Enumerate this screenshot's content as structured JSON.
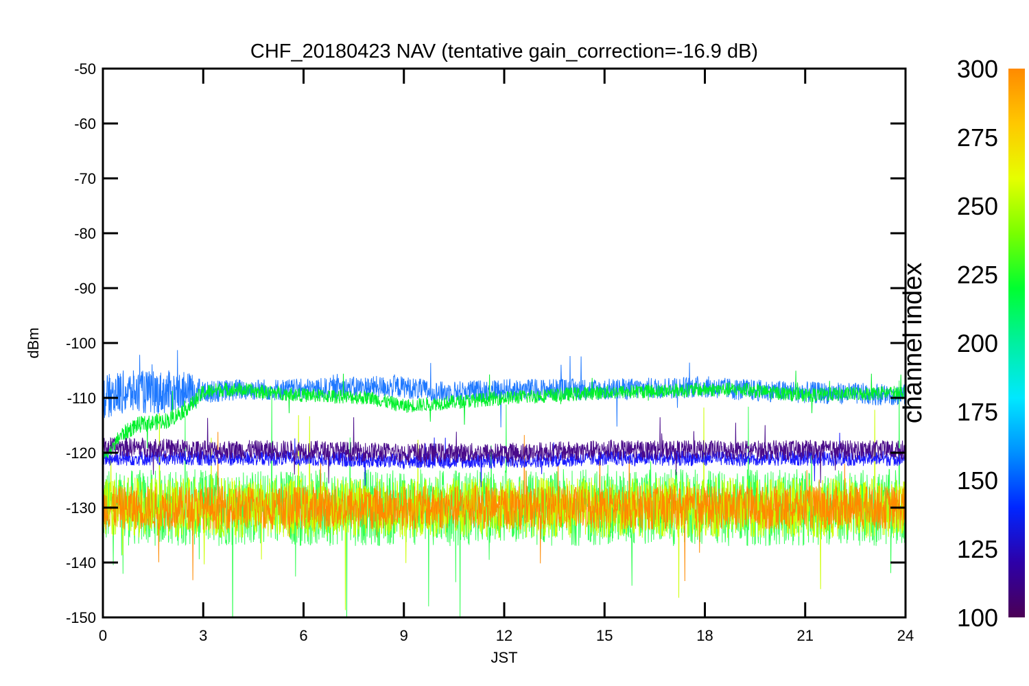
{
  "chart_data": {
    "type": "line",
    "title": "CHF_20180423 NAV (tentative gain_correction=-16.9 dB)",
    "xlabel": "JST",
    "ylabel": "dBm",
    "xlim": [
      0,
      24
    ],
    "ylim": [
      -150,
      -50
    ],
    "x_ticks": [
      "0",
      "3",
      "6",
      "9",
      "12",
      "15",
      "18",
      "21",
      "24"
    ],
    "y_ticks": [
      "-50",
      "-60",
      "-70",
      "-80",
      "-90",
      "-100",
      "-110",
      "-120",
      "-130",
      "-140",
      "-150"
    ],
    "grid": false,
    "colorbar": {
      "label": "channel index",
      "range": [
        100,
        300
      ],
      "ticks": [
        "100",
        "125",
        "150",
        "175",
        "200",
        "225",
        "250",
        "275",
        "300"
      ],
      "colormap": [
        "#4b0055",
        "#2d00a8",
        "#0026ff",
        "#0090ff",
        "#00e8ff",
        "#00f0a0",
        "#00ff30",
        "#7aff00",
        "#e6ff00",
        "#ffc800",
        "#ff8a00"
      ]
    },
    "series": [
      {
        "channel_index": 150,
        "color": "#1e78ff",
        "description_x": [
          0,
          0.5,
          1,
          2,
          2.7,
          3,
          4,
          6,
          8,
          9,
          10,
          12,
          15,
          18,
          19,
          21,
          24
        ],
        "center": [
          -110,
          -109,
          -109,
          -109,
          -109,
          -109,
          -108.5,
          -108.5,
          -108,
          -108,
          -109,
          -108.5,
          -108.5,
          -108,
          -108.5,
          -109,
          -109.5
        ],
        "spread": [
          4,
          4,
          4,
          4,
          3.5,
          2,
          2,
          2,
          2,
          2,
          2,
          2,
          2,
          2,
          2,
          2,
          2
        ]
      },
      {
        "channel_index": 230,
        "color": "#00f02a",
        "description_x": [
          0,
          0.3,
          0.5,
          1,
          2,
          2.7,
          3,
          3.5,
          4,
          6,
          8,
          9,
          10,
          12,
          15,
          18,
          19,
          21,
          24
        ],
        "center": [
          -121,
          -119,
          -117,
          -115,
          -114,
          -111,
          -109,
          -108.5,
          -108.5,
          -109.5,
          -110,
          -111.5,
          -111,
          -110,
          -109,
          -108.5,
          -108.5,
          -109.5,
          -109
        ],
        "spread": [
          1,
          1,
          1.5,
          1.5,
          1.5,
          1.5,
          1.5,
          1.3,
          1.3,
          1.3,
          1.3,
          1.3,
          1.3,
          1.3,
          1.3,
          1.3,
          1.3,
          1.3,
          1.3
        ]
      },
      {
        "channel_index": 110,
        "color": "#4a0b8a",
        "description_x": [
          0,
          1,
          3,
          6,
          9,
          12,
          15,
          18,
          21,
          24
        ],
        "center": [
          -119,
          -119,
          -119.5,
          -119.5,
          -120,
          -120,
          -119.5,
          -119.5,
          -119.5,
          -119.5
        ],
        "spread": [
          1.8,
          1.8,
          1.8,
          1.8,
          1.8,
          1.8,
          1.8,
          1.8,
          1.8,
          1.8
        ]
      },
      {
        "channel_index": 135,
        "color": "#1a1aff",
        "description_x": [
          0,
          3,
          6,
          9,
          12,
          15,
          18,
          21,
          24
        ],
        "center": [
          -121,
          -121,
          -121,
          -121.5,
          -121.5,
          -121,
          -121,
          -121,
          -121
        ],
        "spread": [
          1.4,
          1.4,
          1.4,
          1.4,
          1.4,
          1.4,
          1.4,
          1.4,
          1.4
        ]
      },
      {
        "channel_index": 215,
        "color": "#33ff55",
        "description_x": [
          0,
          6,
          12,
          18,
          24
        ],
        "center": [
          -130,
          -130,
          -130,
          -130,
          -130
        ],
        "spread": [
          7,
          7,
          7,
          7,
          7
        ]
      },
      {
        "channel_index": 265,
        "color": "#ccff00",
        "description_x": [
          0,
          6,
          12,
          18,
          24
        ],
        "center": [
          -130,
          -130,
          -130,
          -130,
          -130
        ],
        "spread": [
          5.5,
          5.5,
          5.5,
          5.5,
          5.5
        ]
      },
      {
        "channel_index": 290,
        "color": "#ff8a00",
        "description_x": [
          0,
          6,
          12,
          18,
          24
        ],
        "center": [
          -130,
          -130,
          -130,
          -130,
          -130
        ],
        "spread": [
          4,
          4,
          4,
          4,
          4
        ]
      }
    ]
  }
}
